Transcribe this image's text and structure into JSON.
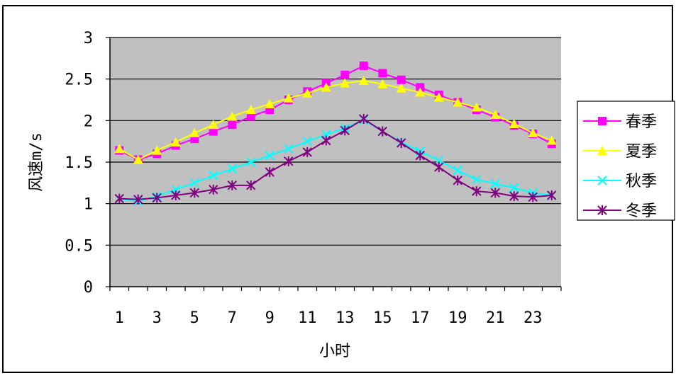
{
  "chart_data": {
    "type": "line",
    "title": "",
    "xlabel": "小时",
    "ylabel": "风速m/s",
    "x": [
      1,
      2,
      3,
      4,
      5,
      6,
      7,
      8,
      9,
      10,
      11,
      12,
      13,
      14,
      15,
      16,
      17,
      18,
      19,
      20,
      21,
      22,
      23,
      24
    ],
    "x_tick_labels": [
      "1",
      "3",
      "5",
      "7",
      "9",
      "11",
      "13",
      "15",
      "17",
      "19",
      "21",
      "23"
    ],
    "ylim": [
      0,
      3
    ],
    "y_tick_labels": [
      "0",
      "0.5",
      "1",
      "1.5",
      "2",
      "2.5",
      "3"
    ],
    "grid": "horizontal",
    "legend_position": "right",
    "plot_background": "#c0c0c0",
    "series": [
      {
        "name": "春季",
        "color": "#ff00ff",
        "marker": "square",
        "values": [
          1.64,
          1.53,
          1.6,
          1.7,
          1.78,
          1.87,
          1.95,
          2.05,
          2.13,
          2.25,
          2.35,
          2.45,
          2.55,
          2.66,
          2.57,
          2.49,
          2.4,
          2.31,
          2.22,
          2.13,
          2.04,
          1.94,
          1.84,
          1.72
        ]
      },
      {
        "name": "夏季",
        "color": "#ffff00",
        "marker": "triangle",
        "values": [
          1.66,
          1.53,
          1.64,
          1.74,
          1.85,
          1.95,
          2.05,
          2.13,
          2.2,
          2.27,
          2.33,
          2.4,
          2.45,
          2.48,
          2.44,
          2.39,
          2.34,
          2.28,
          2.22,
          2.16,
          2.07,
          1.96,
          1.85,
          1.76
        ]
      },
      {
        "name": "秋季",
        "color": "#00ffff",
        "marker": "x",
        "values": [
          1.06,
          1.03,
          1.09,
          1.17,
          1.25,
          1.34,
          1.42,
          1.5,
          1.58,
          1.66,
          1.75,
          1.83,
          1.91,
          2.01,
          1.87,
          1.74,
          1.63,
          1.52,
          1.4,
          1.29,
          1.24,
          1.19,
          1.13,
          1.1
        ]
      },
      {
        "name": "冬季",
        "color": "#800080",
        "marker": "asterisk",
        "values": [
          1.06,
          1.05,
          1.07,
          1.1,
          1.13,
          1.17,
          1.22,
          1.22,
          1.38,
          1.51,
          1.62,
          1.76,
          1.88,
          2.02,
          1.87,
          1.73,
          1.58,
          1.44,
          1.28,
          1.15,
          1.13,
          1.09,
          1.08,
          1.1
        ]
      }
    ]
  }
}
